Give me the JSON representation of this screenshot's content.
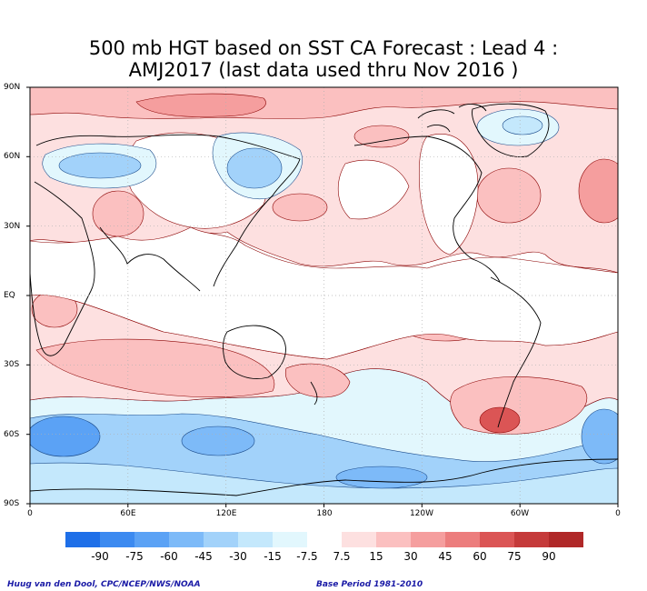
{
  "title_line1": "500 mb HGT based on SST CA Forecast : Lead 4 :",
  "title_line2": "AMJ2017 (last data used thru Nov 2016 )",
  "lat_labels": [
    "90N",
    "60N",
    "30N",
    "EQ",
    "30S",
    "60S",
    "90S"
  ],
  "lon_labels": [
    "0",
    "60E",
    "120E",
    "180",
    "120W",
    "60W",
    "0"
  ],
  "colorbar": {
    "labels": [
      "-90",
      "-75",
      "-60",
      "-45",
      "-30",
      "-15",
      "-7.5",
      "7.5",
      "15",
      "30",
      "45",
      "60",
      "75",
      "90"
    ],
    "colors": [
      "#1e6fe8",
      "#3c8af0",
      "#5ba2f5",
      "#7dbaf8",
      "#a2d2fa",
      "#c4e8fc",
      "#e2f7fd",
      "#ffffff",
      "#fde0e0",
      "#fbc0c0",
      "#f59e9e",
      "#ec7d7d",
      "#db5555",
      "#c53a3a",
      "#b02828"
    ]
  },
  "credit_left": "Huug van den Dool, CPC/NCEP/NWS/NOAA",
  "credit_right": "Base Period 1981-2010",
  "colors": {
    "neg_light": "#e2f7fd",
    "neg_mid": "#a2d2fa",
    "neg_strong": "#5ba2f5",
    "pos_light": "#fde0e0",
    "pos_mid": "#f59e9e",
    "pos_strong": "#db5555",
    "contour": "#8b0000"
  }
}
